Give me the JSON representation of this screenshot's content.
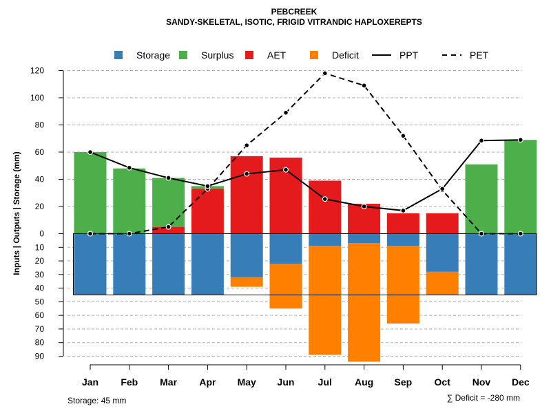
{
  "chart_data": {
    "type": "bar",
    "title": "PEBCREEK",
    "subtitle": "SANDY-SKELETAL, ISOTIC, FRIGID VITRANDIC HAPLOXEREPTS",
    "ylabel": "Inputs | Outputs | Storage    (mm)",
    "ylim_upper": [
      0,
      120
    ],
    "ylim_lower": [
      0,
      90
    ],
    "yticks_upper": [
      0,
      20,
      40,
      60,
      80,
      100,
      120
    ],
    "yticks_lower": [
      10,
      20,
      30,
      40,
      50,
      60,
      70,
      80,
      90
    ],
    "categories": [
      "Jan",
      "Feb",
      "Mar",
      "Apr",
      "May",
      "Jun",
      "Jul",
      "Aug",
      "Sep",
      "Oct",
      "Nov",
      "Dec"
    ],
    "colors": {
      "storage": "#377eb8",
      "surplus": "#4daf4a",
      "aet": "#e41a1c",
      "deficit": "#ff7f00",
      "line": "#000000",
      "grid": "#b0b0b0"
    },
    "legend": [
      {
        "key": "storage",
        "label": "Storage",
        "kind": "box"
      },
      {
        "key": "surplus",
        "label": "Surplus",
        "kind": "box"
      },
      {
        "key": "aet",
        "label": "AET",
        "kind": "box"
      },
      {
        "key": "deficit",
        "label": "Deficit",
        "kind": "box"
      },
      {
        "key": "ppt",
        "label": "PPT",
        "kind": "solid"
      },
      {
        "key": "pet",
        "label": "PET",
        "kind": "dashed"
      }
    ],
    "series": {
      "aet": [
        0,
        0,
        5,
        33,
        57,
        56,
        39,
        22,
        15,
        15,
        0,
        0
      ],
      "surplus": [
        60,
        48,
        36,
        2,
        0,
        0,
        0,
        0,
        0,
        0,
        51,
        69
      ],
      "storage": [
        45,
        45,
        45,
        45,
        32,
        22,
        9,
        7,
        9,
        28,
        45,
        45
      ],
      "deficit": [
        0,
        0,
        0,
        0,
        7,
        33,
        80,
        87,
        57,
        17,
        0,
        0
      ],
      "ppt": [
        60,
        48.5,
        41,
        35,
        44,
        47,
        25.5,
        20,
        17,
        33,
        68.5,
        69
      ],
      "pet": [
        0,
        0,
        5,
        33,
        65,
        89,
        118,
        109,
        72,
        32,
        0,
        0
      ]
    },
    "storage_capacity": 45,
    "storage_note": "Storage: 45 mm",
    "deficit_note": "∑ Deficit = -280 mm"
  }
}
